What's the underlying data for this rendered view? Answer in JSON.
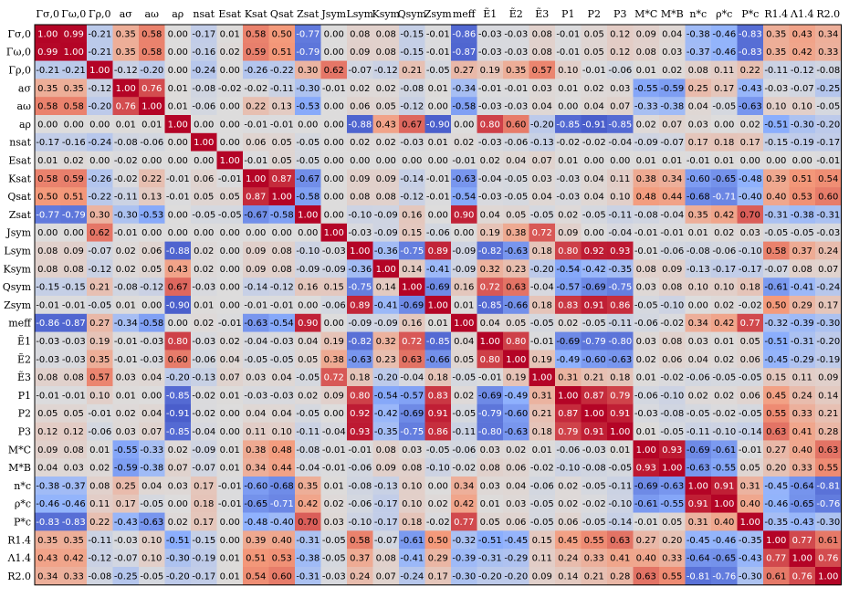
{
  "chart_data": {
    "type": "heatmap",
    "title": "",
    "xlabel": "",
    "ylabel": "",
    "value_range": [
      -1,
      1
    ],
    "colormap": "coolwarm",
    "grid": false,
    "labels": [
      "Γσ,0",
      "Γω,0",
      "Γρ,0",
      "aσ",
      "aω",
      "aρ",
      "nsat",
      "Esat",
      "Ksat",
      "Qsat",
      "Zsat",
      "Jsym",
      "Lsym",
      "Ksym",
      "Qsym",
      "Zsym",
      "meff",
      "Ẽ1",
      "Ẽ2",
      "Ẽ3",
      "P1",
      "P2",
      "P3",
      "M*C",
      "M*B",
      "n*c",
      "ρ*c",
      "P*c",
      "R1.4",
      "Λ1.4",
      "R2.0"
    ],
    "matrix": [
      [
        1.0,
        0.99,
        -0.21,
        0.35,
        0.58,
        0.0,
        -0.17,
        0.01,
        0.58,
        0.5,
        -0.77,
        -0.0,
        0.08,
        0.08,
        -0.15,
        -0.01,
        -0.86,
        -0.03,
        -0.03,
        0.08,
        -0.01,
        0.05,
        0.12,
        0.09,
        0.04,
        -0.38,
        -0.46,
        -0.83,
        0.35,
        0.43,
        0.34
      ],
      [
        0.99,
        1.0,
        -0.21,
        0.35,
        0.58,
        0.0,
        -0.16,
        0.02,
        0.59,
        0.51,
        -0.79,
        -0.0,
        0.09,
        0.08,
        -0.15,
        -0.01,
        -0.87,
        -0.03,
        -0.03,
        0.08,
        -0.01,
        0.05,
        0.12,
        0.08,
        0.03,
        -0.37,
        -0.46,
        -0.83,
        0.35,
        0.42,
        0.33
      ],
      [
        -0.21,
        -0.21,
        1.0,
        -0.12,
        -0.2,
        0.0,
        -0.24,
        -0.0,
        -0.26,
        -0.22,
        0.3,
        0.62,
        -0.07,
        -0.12,
        0.21,
        -0.05,
        0.27,
        0.19,
        0.35,
        0.57,
        0.1,
        -0.01,
        -0.06,
        0.01,
        0.02,
        0.08,
        0.11,
        0.22,
        -0.11,
        -0.12,
        -0.08
      ],
      [
        0.35,
        0.35,
        -0.12,
        1.0,
        0.76,
        0.01,
        -0.08,
        -0.02,
        -0.02,
        -0.11,
        -0.3,
        -0.01,
        0.02,
        0.02,
        -0.08,
        0.01,
        -0.34,
        -0.01,
        -0.01,
        0.03,
        0.01,
        0.02,
        0.03,
        -0.55,
        -0.59,
        0.25,
        0.17,
        -0.43,
        -0.03,
        -0.07,
        -0.25
      ],
      [
        0.58,
        0.58,
        -0.2,
        0.76,
        1.0,
        0.01,
        -0.06,
        0.0,
        0.22,
        0.13,
        -0.53,
        -0.0,
        0.06,
        0.05,
        -0.12,
        0.0,
        -0.58,
        -0.03,
        -0.03,
        0.04,
        -0.0,
        0.04,
        0.07,
        -0.33,
        -0.38,
        0.04,
        -0.05,
        -0.63,
        0.1,
        0.1,
        -0.05
      ],
      [
        0.0,
        0.0,
        0.0,
        0.01,
        0.01,
        1.0,
        -0.0,
        -0.0,
        -0.01,
        -0.01,
        0.0,
        -0.0,
        -0.88,
        0.43,
        0.67,
        -0.9,
        0.0,
        0.8,
        0.6,
        -0.2,
        -0.85,
        -0.91,
        -0.85,
        0.02,
        0.07,
        0.03,
        0.0,
        0.02,
        -0.51,
        -0.3,
        -0.2
      ],
      [
        -0.17,
        -0.16,
        -0.24,
        -0.08,
        -0.06,
        -0.0,
        1.0,
        -0.0,
        0.06,
        0.05,
        -0.05,
        -0.0,
        0.02,
        0.02,
        -0.03,
        0.01,
        0.02,
        -0.03,
        -0.06,
        -0.13,
        -0.02,
        -0.02,
        -0.04,
        -0.09,
        -0.07,
        0.17,
        0.18,
        0.17,
        -0.15,
        -0.19,
        -0.17
      ],
      [
        0.01,
        0.02,
        -0.0,
        -0.02,
        0.0,
        -0.0,
        -0.0,
        1.0,
        -0.01,
        0.05,
        -0.05,
        0.0,
        0.0,
        -0.0,
        0.0,
        -0.0,
        -0.01,
        0.02,
        0.04,
        0.07,
        0.01,
        0.0,
        0.0,
        0.01,
        0.01,
        -0.01,
        0.01,
        0.0,
        0.0,
        -0.0,
        -0.01
      ],
      [
        0.58,
        0.59,
        -0.26,
        -0.02,
        0.22,
        -0.01,
        0.06,
        -0.01,
        1.0,
        0.87,
        -0.67,
        0.0,
        0.09,
        0.09,
        -0.14,
        -0.01,
        -0.63,
        -0.04,
        -0.05,
        0.03,
        -0.03,
        0.04,
        0.11,
        0.38,
        0.34,
        -0.6,
        -0.65,
        -0.48,
        0.39,
        0.51,
        0.54
      ],
      [
        0.5,
        0.51,
        -0.22,
        -0.11,
        0.13,
        -0.01,
        0.05,
        0.05,
        0.87,
        1.0,
        -0.58,
        0.0,
        0.08,
        0.08,
        -0.12,
        -0.01,
        -0.54,
        -0.03,
        -0.05,
        0.04,
        -0.03,
        0.04,
        0.1,
        0.48,
        0.44,
        -0.68,
        -0.71,
        -0.4,
        0.4,
        0.53,
        0.6
      ],
      [
        -0.77,
        -0.79,
        0.3,
        -0.3,
        -0.53,
        0.0,
        -0.05,
        -0.05,
        -0.67,
        -0.58,
        1.0,
        -0.0,
        -0.1,
        -0.09,
        0.16,
        0.0,
        0.9,
        0.04,
        0.05,
        -0.05,
        0.02,
        -0.05,
        -0.11,
        -0.08,
        -0.04,
        0.35,
        0.42,
        0.7,
        -0.31,
        -0.38,
        -0.31
      ],
      [
        -0.0,
        -0.0,
        0.62,
        -0.01,
        -0.0,
        -0.0,
        -0.0,
        0.0,
        0.0,
        0.0,
        -0.0,
        1.0,
        -0.03,
        -0.09,
        0.15,
        -0.06,
        0.0,
        0.19,
        0.38,
        0.72,
        0.09,
        -0.0,
        -0.04,
        -0.01,
        -0.01,
        0.01,
        0.02,
        0.03,
        -0.05,
        -0.05,
        -0.03
      ],
      [
        0.08,
        0.09,
        -0.07,
        0.02,
        0.06,
        -0.88,
        0.02,
        0.0,
        0.09,
        0.08,
        -0.1,
        -0.03,
        1.0,
        -0.36,
        -0.75,
        0.89,
        -0.09,
        -0.82,
        -0.63,
        0.18,
        0.8,
        0.92,
        0.93,
        -0.01,
        -0.06,
        -0.08,
        -0.06,
        -0.1,
        0.58,
        0.37,
        0.24
      ],
      [
        0.08,
        0.08,
        -0.12,
        0.02,
        0.05,
        0.43,
        0.02,
        -0.0,
        0.09,
        0.08,
        -0.09,
        -0.09,
        -0.36,
        1.0,
        0.14,
        -0.41,
        -0.09,
        0.32,
        0.23,
        -0.2,
        -0.54,
        -0.42,
        -0.35,
        0.08,
        0.09,
        -0.13,
        -0.17,
        -0.17,
        -0.07,
        0.08,
        0.07
      ],
      [
        -0.15,
        -0.15,
        0.21,
        -0.08,
        -0.12,
        0.67,
        -0.03,
        0.0,
        -0.14,
        -0.12,
        0.16,
        0.15,
        -0.75,
        0.14,
        1.0,
        -0.69,
        0.16,
        0.72,
        0.63,
        -0.04,
        -0.57,
        -0.69,
        -0.75,
        0.03,
        0.08,
        0.1,
        0.1,
        0.18,
        -0.61,
        -0.41,
        -0.24
      ],
      [
        -0.01,
        -0.01,
        -0.05,
        0.01,
        0.0,
        -0.9,
        0.01,
        -0.0,
        -0.01,
        -0.01,
        0.0,
        -0.06,
        0.89,
        -0.41,
        -0.69,
        1.0,
        0.01,
        -0.85,
        -0.66,
        0.18,
        0.83,
        0.91,
        0.86,
        -0.05,
        -0.1,
        -0.0,
        0.02,
        -0.02,
        0.5,
        0.29,
        0.17
      ],
      [
        -0.86,
        -0.87,
        0.27,
        -0.34,
        -0.58,
        0.0,
        0.02,
        -0.01,
        -0.63,
        -0.54,
        0.9,
        0.0,
        -0.09,
        -0.09,
        0.16,
        0.01,
        1.0,
        0.04,
        0.05,
        -0.05,
        0.02,
        -0.05,
        -0.11,
        -0.06,
        -0.02,
        0.34,
        0.42,
        0.77,
        -0.32,
        -0.39,
        -0.3
      ],
      [
        -0.03,
        -0.03,
        0.19,
        -0.01,
        -0.03,
        0.8,
        -0.03,
        0.02,
        -0.04,
        -0.03,
        0.04,
        0.19,
        -0.82,
        0.32,
        0.72,
        -0.85,
        0.04,
        1.0,
        0.8,
        -0.01,
        -0.69,
        -0.79,
        -0.8,
        0.03,
        0.08,
        0.03,
        0.01,
        0.05,
        -0.51,
        -0.31,
        -0.2
      ],
      [
        -0.03,
        -0.03,
        0.35,
        -0.01,
        -0.03,
        0.6,
        -0.06,
        0.04,
        -0.05,
        -0.05,
        0.05,
        0.38,
        -0.63,
        0.23,
        0.63,
        -0.66,
        0.05,
        0.8,
        1.0,
        0.19,
        -0.49,
        -0.6,
        -0.63,
        0.02,
        0.06,
        0.04,
        0.02,
        0.06,
        -0.45,
        -0.29,
        -0.19
      ],
      [
        0.08,
        0.08,
        0.57,
        0.03,
        0.04,
        -0.2,
        -0.13,
        0.07,
        0.03,
        0.04,
        -0.05,
        0.72,
        0.18,
        -0.2,
        -0.04,
        0.18,
        -0.05,
        -0.01,
        0.19,
        1.0,
        0.31,
        0.21,
        0.18,
        0.01,
        -0.02,
        -0.06,
        -0.05,
        -0.05,
        0.15,
        0.11,
        0.09
      ],
      [
        -0.01,
        -0.01,
        0.1,
        0.01,
        -0.0,
        -0.85,
        -0.02,
        0.01,
        -0.03,
        -0.03,
        0.02,
        0.09,
        0.8,
        -0.54,
        -0.57,
        0.83,
        0.02,
        -0.69,
        -0.49,
        0.31,
        1.0,
        0.87,
        0.79,
        -0.06,
        -0.1,
        0.02,
        0.02,
        0.06,
        0.45,
        0.24,
        0.14
      ],
      [
        0.05,
        0.05,
        -0.01,
        0.02,
        0.04,
        -0.91,
        -0.02,
        0.0,
        0.04,
        0.04,
        -0.05,
        -0.0,
        0.92,
        -0.42,
        -0.69,
        0.91,
        -0.05,
        -0.79,
        -0.6,
        0.21,
        0.87,
        1.0,
        0.91,
        -0.03,
        -0.08,
        -0.05,
        -0.02,
        -0.05,
        0.55,
        0.33,
        0.21
      ],
      [
        0.12,
        0.12,
        -0.06,
        0.03,
        0.07,
        -0.85,
        -0.04,
        0.0,
        0.11,
        0.1,
        -0.11,
        -0.04,
        0.93,
        -0.35,
        -0.75,
        0.86,
        -0.11,
        -0.8,
        -0.63,
        0.18,
        0.79,
        0.91,
        1.0,
        0.01,
        -0.05,
        -0.11,
        -0.1,
        -0.14,
        0.63,
        0.41,
        0.28
      ],
      [
        0.09,
        0.08,
        0.01,
        -0.55,
        -0.33,
        0.02,
        -0.09,
        0.01,
        0.38,
        0.48,
        -0.08,
        -0.01,
        -0.01,
        0.08,
        0.03,
        -0.05,
        -0.06,
        0.03,
        0.02,
        0.01,
        -0.06,
        -0.03,
        0.01,
        1.0,
        0.93,
        -0.69,
        -0.61,
        -0.01,
        0.27,
        0.4,
        0.63
      ],
      [
        0.04,
        0.03,
        0.02,
        -0.59,
        -0.38,
        0.07,
        -0.07,
        0.01,
        0.34,
        0.44,
        -0.04,
        -0.01,
        -0.06,
        0.09,
        0.08,
        -0.1,
        -0.02,
        0.08,
        0.06,
        -0.02,
        -0.1,
        -0.08,
        -0.05,
        0.93,
        1.0,
        -0.63,
        -0.55,
        0.05,
        0.2,
        0.33,
        0.55
      ],
      [
        -0.38,
        -0.37,
        0.08,
        0.25,
        0.04,
        0.03,
        0.17,
        -0.01,
        -0.6,
        -0.68,
        0.35,
        0.01,
        -0.08,
        -0.13,
        0.1,
        -0.0,
        0.34,
        0.03,
        0.04,
        -0.06,
        0.02,
        -0.05,
        -0.11,
        -0.69,
        -0.63,
        1.0,
        0.91,
        0.31,
        -0.45,
        -0.64,
        -0.81
      ],
      [
        -0.46,
        -0.46,
        0.11,
        0.17,
        -0.05,
        0.0,
        0.18,
        -0.01,
        -0.65,
        -0.71,
        0.42,
        0.02,
        -0.06,
        -0.17,
        0.1,
        0.02,
        0.42,
        0.01,
        0.03,
        -0.05,
        0.02,
        -0.02,
        -0.1,
        -0.61,
        -0.55,
        0.91,
        1.0,
        0.4,
        -0.46,
        -0.65,
        -0.76
      ],
      [
        -0.83,
        -0.83,
        0.22,
        -0.43,
        -0.63,
        0.02,
        0.17,
        -0.0,
        -0.48,
        -0.4,
        0.7,
        0.03,
        -0.1,
        -0.17,
        0.18,
        -0.02,
        0.77,
        0.05,
        0.06,
        -0.05,
        0.06,
        -0.05,
        -0.14,
        -0.01,
        0.05,
        0.31,
        0.4,
        1.0,
        -0.35,
        -0.43,
        -0.3
      ],
      [
        0.35,
        0.35,
        -0.11,
        -0.03,
        0.1,
        -0.51,
        -0.15,
        0.0,
        0.39,
        0.4,
        -0.31,
        -0.05,
        0.58,
        -0.07,
        -0.61,
        0.5,
        -0.32,
        -0.51,
        -0.45,
        0.15,
        0.45,
        0.55,
        0.63,
        0.27,
        0.2,
        -0.45,
        -0.46,
        -0.35,
        1.0,
        0.77,
        0.61
      ],
      [
        0.43,
        0.42,
        -0.12,
        -0.07,
        0.1,
        -0.3,
        -0.19,
        0.01,
        0.51,
        0.53,
        -0.38,
        -0.05,
        0.37,
        0.08,
        -0.41,
        0.29,
        -0.39,
        -0.31,
        -0.29,
        0.11,
        0.24,
        0.33,
        0.41,
        0.4,
        0.33,
        -0.64,
        -0.65,
        -0.43,
        0.77,
        1.0,
        0.76
      ],
      [
        0.34,
        0.33,
        -0.08,
        -0.25,
        -0.05,
        -0.2,
        -0.17,
        0.01,
        0.54,
        0.6,
        -0.31,
        -0.03,
        0.24,
        0.07,
        -0.24,
        0.17,
        -0.3,
        -0.2,
        -0.2,
        0.09,
        0.14,
        0.21,
        0.28,
        0.63,
        0.55,
        -0.81,
        -0.76,
        -0.3,
        0.61,
        0.76,
        1.0
      ]
    ]
  }
}
